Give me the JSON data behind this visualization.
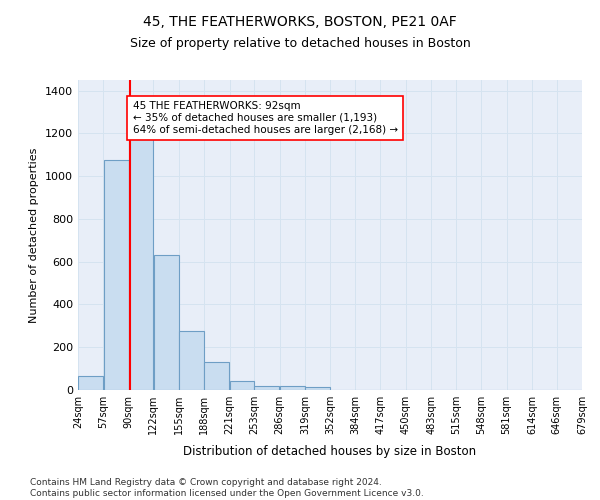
{
  "title": "45, THE FEATHERWORKS, BOSTON, PE21 0AF",
  "subtitle": "Size of property relative to detached houses in Boston",
  "xlabel": "Distribution of detached houses by size in Boston",
  "ylabel": "Number of detached properties",
  "bar_color": "#c9ddf0",
  "bar_edge_color": "#6e9ec5",
  "vline_color": "red",
  "vline_x": 92,
  "annotation_text": "45 THE FEATHERWORKS: 92sqm\n← 35% of detached houses are smaller (1,193)\n64% of semi-detached houses are larger (2,168) →",
  "annotation_box_color": "white",
  "annotation_box_edge": "red",
  "bins": [
    24,
    57,
    90,
    122,
    155,
    188,
    221,
    253,
    286,
    319,
    352,
    384,
    417,
    450,
    483,
    515,
    548,
    581,
    614,
    646,
    679
  ],
  "bar_heights": [
    65,
    1075,
    1190,
    630,
    275,
    130,
    40,
    20,
    20,
    15,
    0,
    0,
    0,
    0,
    0,
    0,
    0,
    0,
    0,
    0
  ],
  "ylim": [
    0,
    1450
  ],
  "yticks": [
    0,
    200,
    400,
    600,
    800,
    1000,
    1200,
    1400
  ],
  "tick_labels": [
    "24sqm",
    "57sqm",
    "90sqm",
    "122sqm",
    "155sqm",
    "188sqm",
    "221sqm",
    "253sqm",
    "286sqm",
    "319sqm",
    "352sqm",
    "384sqm",
    "417sqm",
    "450sqm",
    "483sqm",
    "515sqm",
    "548sqm",
    "581sqm",
    "614sqm",
    "646sqm",
    "679sqm"
  ],
  "grid_color": "#d5e3f0",
  "background_color": "#e8eef8",
  "footer_text": "Contains HM Land Registry data © Crown copyright and database right 2024.\nContains public sector information licensed under the Open Government Licence v3.0.",
  "title_fontsize": 10,
  "subtitle_fontsize": 9,
  "xlabel_fontsize": 8.5,
  "ylabel_fontsize": 8,
  "tick_fontsize": 7,
  "ytick_fontsize": 8,
  "footer_fontsize": 6.5,
  "annotation_fontsize": 7.5
}
